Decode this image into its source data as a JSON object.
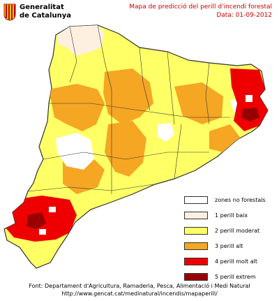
{
  "header": {
    "logo_line1": "Generalitat",
    "logo_line2": "de Catalunya",
    "title": "Mapa de predicció del perill d'incendi forestal",
    "date": "Data: 01-09-2012"
  },
  "legend": {
    "items": [
      {
        "label": "zones no forestals",
        "color": "#ffffff"
      },
      {
        "label": "1  perill baix",
        "color": "#fdf0e0"
      },
      {
        "label": "2  perill moderat",
        "color": "#ffff66"
      },
      {
        "label": "3  perill alt",
        "color": "#f5a623"
      },
      {
        "label": "4  perill molt alt",
        "color": "#ee0000"
      },
      {
        "label": "5  perill extrem",
        "color": "#990000"
      }
    ]
  },
  "footer": {
    "source": "Font: Departament d'Agricultura, Ramaderia, Pesca, Alimentació i Medi Natural",
    "url": "http://www.gencat.cat/medinatural/incendis/mapaperill/"
  },
  "colors": {
    "title_red": "#cc0000",
    "border": "#333333"
  }
}
